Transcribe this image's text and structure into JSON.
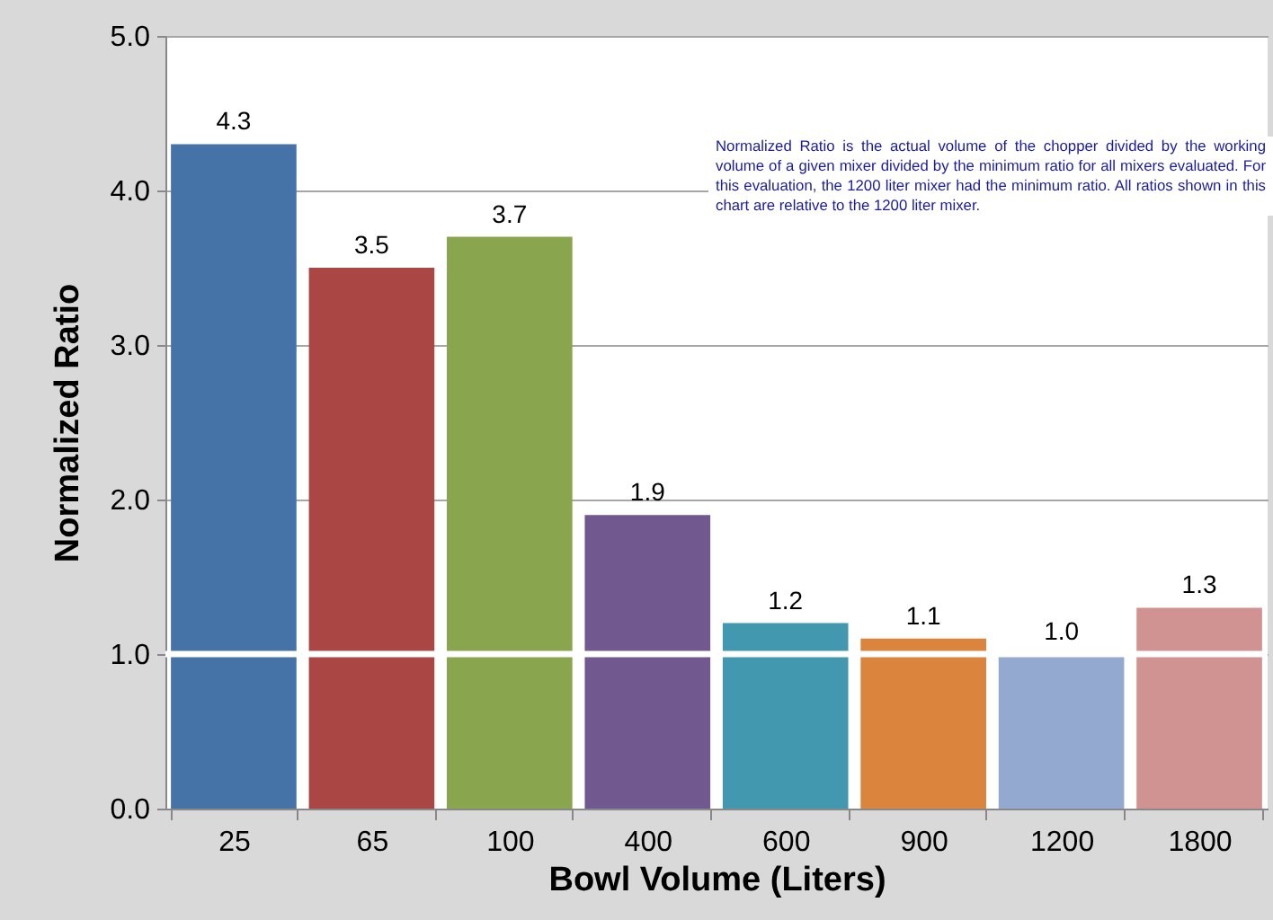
{
  "chart_data": {
    "type": "bar",
    "xlabel": "Bowl Volume (Liters)",
    "ylabel": "Normalized Ratio",
    "categories": [
      "25",
      "65",
      "100",
      "400",
      "600",
      "900",
      "1200",
      "1800"
    ],
    "values": [
      4.3,
      3.5,
      3.7,
      1.9,
      1.2,
      1.1,
      1.0,
      1.3
    ],
    "colors": [
      "#4572a7",
      "#aa4643",
      "#89a54e",
      "#71588f",
      "#4198af",
      "#db843d",
      "#93a9cf",
      "#d19392"
    ],
    "ylim": [
      0,
      5
    ],
    "yticks": [
      {
        "value": 0,
        "label": "0.0"
      },
      {
        "value": 1,
        "label": "1.0"
      },
      {
        "value": 2,
        "label": "2.0"
      },
      {
        "value": 3,
        "label": "3.0"
      },
      {
        "value": 4,
        "label": "4.0"
      },
      {
        "value": 5,
        "label": "5.0"
      }
    ],
    "grid": "y",
    "value_labels": [
      "4.3",
      "3.5",
      "3.7",
      "1.9",
      "1.2",
      "1.1",
      "1.0",
      "1.3"
    ],
    "ref_lines": [
      {
        "axis": "y",
        "value": 1,
        "color": "#ffffff"
      }
    ],
    "annotations": [
      "Normalized Ratio is the actual volume of the chopper divided by the working volume of a given mixer divided by the minimum ratio for all mixers evaluated. For this evaluation, the 1200 liter mixer had the minimum ratio. All ratios shown in this chart are relative to the 1200 liter mixer."
    ]
  }
}
